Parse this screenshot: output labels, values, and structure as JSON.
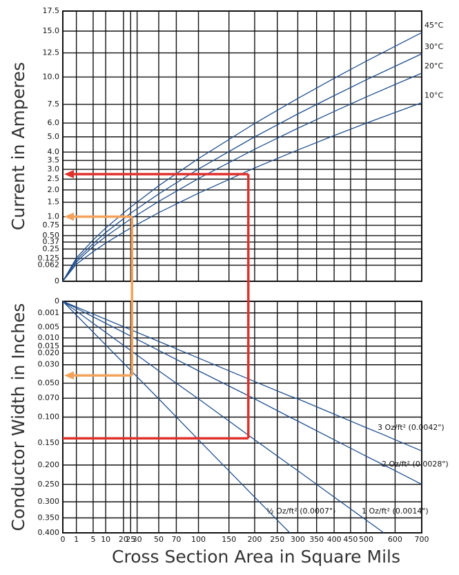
{
  "chart_data": [
    {
      "type": "line",
      "y_label": "Current in Amperes",
      "xscale": "sqrt",
      "yscale": "sqrt",
      "grid": true,
      "xlim": [
        0,
        700
      ],
      "xticks": [
        0,
        1,
        5,
        10,
        20,
        25,
        30,
        50,
        70,
        100,
        150,
        200,
        250,
        300,
        350,
        400,
        450,
        500,
        600,
        700
      ],
      "ylim": [
        0,
        17.5
      ],
      "yticks": [
        0,
        0.062,
        0.125,
        0.25,
        0.37,
        {
          "value": 0.5,
          "label": "0.50"
        },
        0.75,
        {
          "value": 1,
          "label": "1.0"
        },
        1.5,
        {
          "value": 2,
          "label": "2.0"
        },
        2.5,
        {
          "value": 3,
          "label": "3.0"
        },
        3.5,
        {
          "value": 4,
          "label": "4.0"
        },
        {
          "value": 5,
          "label": "5.0"
        },
        {
          "value": 6,
          "label": "6.0"
        },
        7.5,
        {
          "value": 10,
          "label": "10.0"
        },
        12.5,
        {
          "value": 15,
          "label": "15.0"
        },
        17.5
      ],
      "x": [
        0,
        1,
        5,
        10,
        25,
        50,
        100,
        200,
        300,
        400,
        500,
        600,
        700
      ],
      "series": [
        {
          "name": "45°C",
          "color": "#1f4e8c",
          "values": [
            0,
            0.13,
            0.41,
            0.68,
            1.32,
            2.19,
            3.61,
            5.97,
            8.01,
            9.87,
            11.61,
            13.24,
            14.82
          ]
        },
        {
          "name": "30°C",
          "color": "#1f4e8c",
          "values": [
            0,
            0.11,
            0.34,
            0.57,
            1.11,
            1.83,
            3.02,
            5.0,
            6.71,
            8.26,
            9.72,
            11.08,
            12.4
          ]
        },
        {
          "name": "20°C",
          "color": "#1f4e8c",
          "values": [
            0,
            0.09,
            0.29,
            0.48,
            0.93,
            1.53,
            2.53,
            4.18,
            5.61,
            6.91,
            8.14,
            9.28,
            10.38
          ]
        },
        {
          "name": "10°C",
          "color": "#1f4e8c",
          "values": [
            0,
            0.07,
            0.21,
            0.35,
            0.68,
            1.13,
            1.86,
            3.08,
            4.13,
            5.09,
            5.99,
            6.83,
            7.64
          ]
        }
      ]
    },
    {
      "type": "line",
      "y_label": "Conductor Width in Inches",
      "x_label": "Cross Section Area in Square Mils",
      "xscale": "sqrt",
      "yscale": "sqrt",
      "grid": true,
      "xlim": [
        0,
        700
      ],
      "xticks": [
        0,
        1,
        5,
        10,
        20,
        25,
        30,
        50,
        70,
        100,
        150,
        200,
        250,
        300,
        350,
        400,
        450,
        500,
        600,
        700
      ],
      "ylim": [
        0.4,
        0
      ],
      "yticks": [
        0,
        0.001,
        0.005,
        {
          "value": 0.01,
          "label": "0.010"
        },
        0.015,
        {
          "value": 0.02,
          "label": "0.020"
        },
        {
          "value": 0.03,
          "label": "0.030"
        },
        {
          "value": 0.05,
          "label": "0.050"
        },
        {
          "value": 0.07,
          "label": "0.070"
        },
        {
          "value": 0.1,
          "label": "0.100"
        },
        {
          "value": 0.15,
          "label": "0.150"
        },
        {
          "value": 0.2,
          "label": "0.200"
        },
        {
          "value": 0.25,
          "label": "0.250"
        },
        {
          "value": 0.3,
          "label": "0.300"
        },
        {
          "value": 0.35,
          "label": "0.350"
        },
        {
          "value": 0.4,
          "label": "0.400"
        }
      ],
      "x": [
        0,
        50,
        100,
        200,
        280,
        300,
        400,
        500,
        560,
        600,
        700
      ],
      "series": [
        {
          "name": "3 Oz/ft² (0.0042\")",
          "color": "#1f4e8c",
          "values": [
            0,
            0.012,
            0.024,
            0.048,
            0.067,
            0.071,
            0.095,
            0.119,
            0.133,
            0.143,
            0.167
          ]
        },
        {
          "name": "2 Oz/ft² (0.0028\")",
          "color": "#1f4e8c",
          "values": [
            0,
            0.018,
            0.036,
            0.071,
            0.1,
            0.107,
            0.143,
            0.179,
            0.2,
            0.214,
            0.25
          ]
        },
        {
          "name": "1 Oz/ft² (0.0014\")",
          "color": "#1f4e8c",
          "values": [
            0,
            0.036,
            0.071,
            0.143,
            0.2,
            0.214,
            0.286,
            0.357,
            0.4,
            null,
            null
          ]
        },
        {
          "name": "½ Oz/ft² (0.0007\")",
          "color": "#1f4e8c",
          "values": [
            0,
            0.071,
            0.143,
            0.286,
            0.4,
            null,
            null,
            null,
            null,
            null,
            null
          ]
        }
      ]
    }
  ],
  "examples": [
    {
      "color": "#e0302c",
      "area": 187,
      "current": 2.75,
      "width": 0.14
    },
    {
      "color": "#f4a25a",
      "area": 26,
      "current": 1.0,
      "width": 0.041
    }
  ]
}
